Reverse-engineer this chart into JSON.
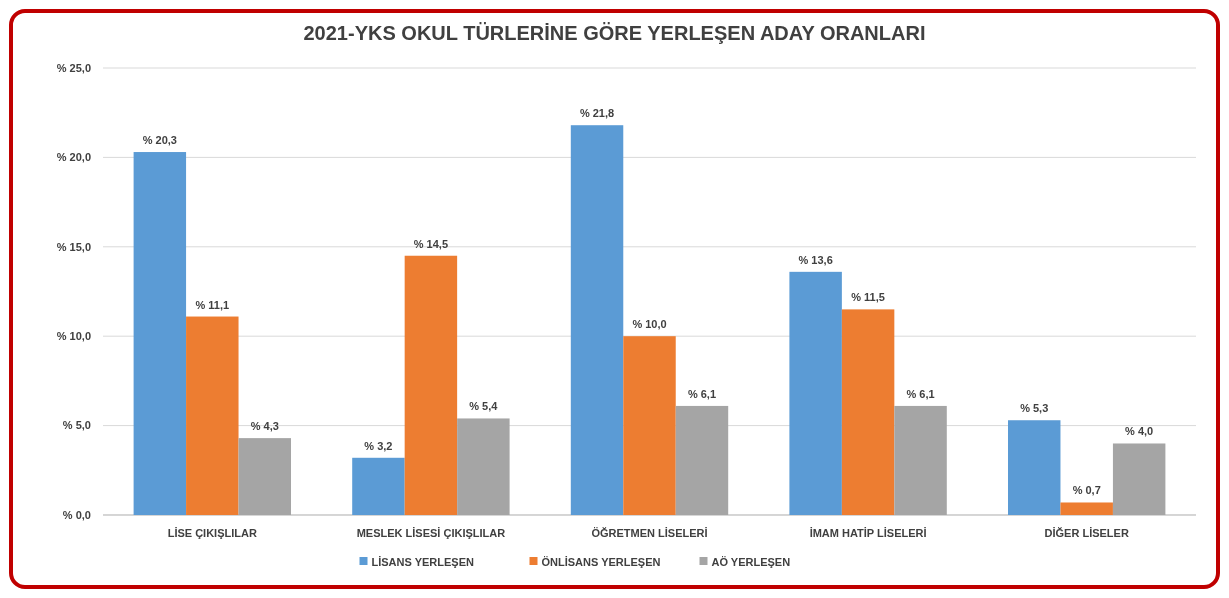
{
  "chart_data": {
    "type": "bar",
    "title": "2021-YKS OKUL TÜRLERİNE GÖRE YERLEŞEN ADAY ORANLARI",
    "categories": [
      "LİSE ÇIKIŞLILAR",
      "MESLEK LİSESİ ÇIKIŞLILAR",
      "ÖĞRETMEN LİSELERİ",
      "İMAM HATİP LİSELERİ",
      "DİĞER LİSELER"
    ],
    "series": [
      {
        "name": "LİSANS YERLEŞEN",
        "color": "#5b9bd5",
        "values": [
          20.3,
          3.2,
          21.8,
          13.6,
          5.3
        ],
        "value_labels": [
          "% 20,3",
          "% 3,2",
          "% 21,8",
          "% 13,6",
          "% 5,3"
        ]
      },
      {
        "name": "ÖNLİSANS YERLEŞEN",
        "color": "#ed7d31",
        "values": [
          11.1,
          14.5,
          10.0,
          11.5,
          0.7
        ],
        "value_labels": [
          "% 11,1",
          "% 14,5",
          "% 10,0",
          "% 11,5",
          "% 0,7"
        ]
      },
      {
        "name": "AÖ YERLEŞEN",
        "color": "#a5a5a5",
        "values": [
          4.3,
          5.4,
          6.1,
          6.1,
          4.0
        ],
        "value_labels": [
          "% 4,3",
          "% 5,4",
          "% 6,1",
          "% 6,1",
          "% 4,0"
        ]
      }
    ],
    "ylim": [
      0,
      25
    ],
    "yticks": [
      {
        "value": 0,
        "label": "% 0,0"
      },
      {
        "value": 5,
        "label": "% 5,0"
      },
      {
        "value": 10,
        "label": "% 10,0"
      },
      {
        "value": 15,
        "label": "% 15,0"
      },
      {
        "value": 20,
        "label": "% 20,0"
      },
      {
        "value": 25,
        "label": "% 25,0"
      }
    ],
    "grid": true,
    "legend": "bottom"
  }
}
